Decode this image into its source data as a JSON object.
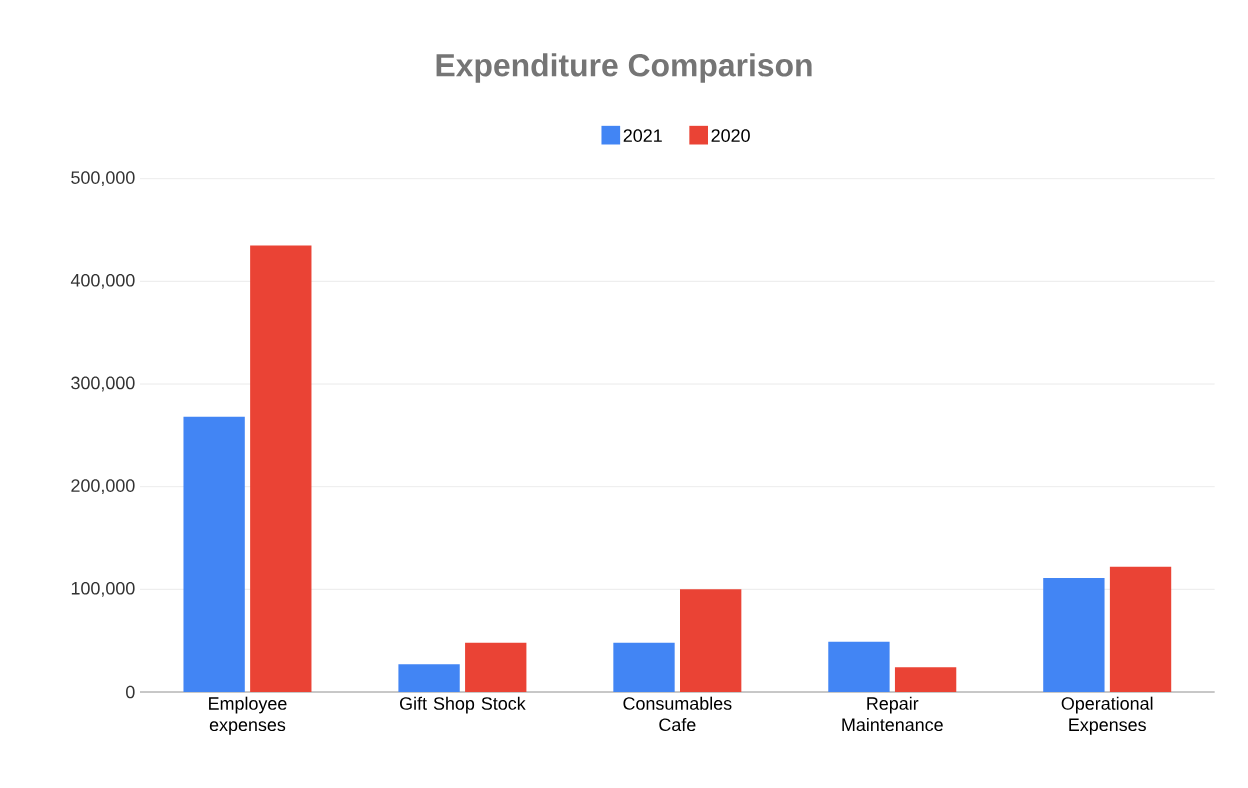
{
  "chart_data": {
    "type": "bar",
    "title": "Expenditure Comparison",
    "categories": [
      "Employee expenses",
      "Gift Shop Stock",
      "Consumables Cafe",
      "Repair Maintenance",
      "Operational Expenses"
    ],
    "series": [
      {
        "name": "2021",
        "color": "#4285f4",
        "values": [
          268000,
          27000,
          48000,
          49000,
          111000
        ]
      },
      {
        "name": "2020",
        "color": "#ea4335",
        "values": [
          435000,
          48000,
          100000,
          24000,
          122000
        ]
      }
    ],
    "ylim": [
      0,
      500000
    ],
    "yticks": [
      0,
      {
        "value": 100000,
        "label": "100,000"
      },
      {
        "value": 200000,
        "label": "200,000"
      },
      {
        "value": 300000,
        "label": "300,000"
      },
      {
        "value": 400000,
        "label": "400,000"
      },
      {
        "value": 500000,
        "label": "500,000"
      }
    ],
    "grid": "y",
    "legend": "top"
  }
}
